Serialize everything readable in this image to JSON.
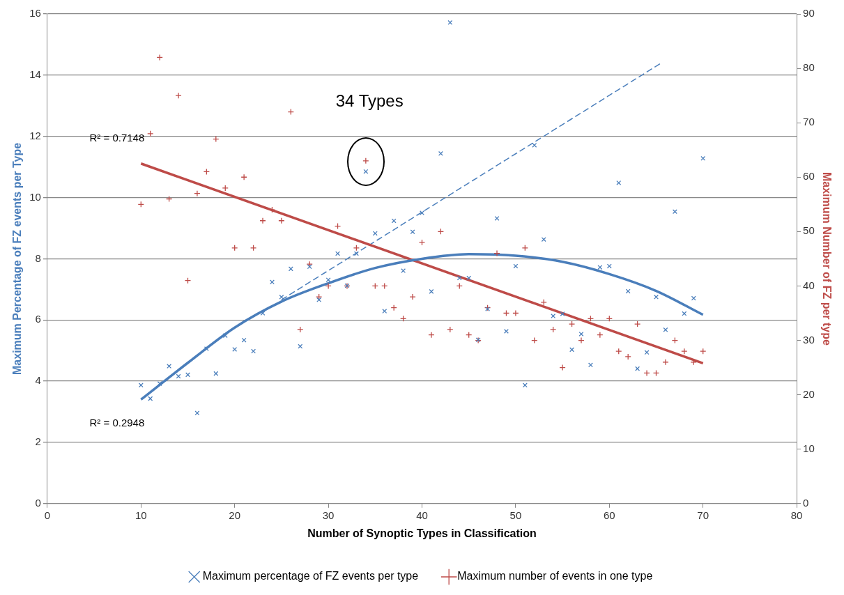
{
  "chart_data": {
    "type": "scatter",
    "xlabel": "Number of Synoptic Types in Classification",
    "ylabel": "Maximum Percentage of FZ events per Type",
    "y2label": "Maximum Number of FZ per type",
    "xlim": [
      0,
      80
    ],
    "xticks": [
      0,
      10,
      20,
      30,
      40,
      50,
      60,
      70,
      80
    ],
    "ylim": [
      0,
      16
    ],
    "yticks": [
      0,
      2,
      4,
      6,
      8,
      10,
      12,
      14,
      16
    ],
    "y2lim": [
      0,
      90
    ],
    "y2ticks": [
      0,
      10,
      20,
      30,
      40,
      50,
      60,
      70,
      80,
      90
    ],
    "grid": "y",
    "legend": "bottom",
    "x": [
      10,
      11,
      12,
      13,
      14,
      15,
      16,
      17,
      18,
      19,
      20,
      21,
      22,
      23,
      24,
      25,
      26,
      27,
      28,
      29,
      30,
      31,
      32,
      33,
      34,
      35,
      36,
      37,
      38,
      39,
      40,
      41,
      42,
      43,
      44,
      45,
      46,
      47,
      48,
      49,
      50,
      51,
      52,
      53,
      54,
      55,
      56,
      57,
      58,
      59,
      60,
      61,
      62,
      63,
      64,
      65,
      66,
      67,
      68,
      69,
      70
    ],
    "series": [
      {
        "name": "Maximum percentage of FZ events per type",
        "color": "#4a7ebb",
        "marker": "x",
        "values": [
          3.87,
          3.43,
          3.92,
          4.49,
          4.16,
          4.21,
          2.96,
          5.06,
          4.25,
          5.49,
          5.04,
          5.34,
          4.98,
          6.22,
          7.24,
          6.75,
          7.67,
          5.14,
          7.74,
          6.66,
          7.31,
          8.17,
          7.12,
          8.17,
          10.85,
          8.83,
          6.29,
          9.24,
          7.61,
          8.88,
          9.5,
          6.93,
          11.44,
          15.72,
          7.37,
          7.37,
          5.35,
          6.36,
          9.32,
          5.63,
          7.76,
          3.87,
          11.71,
          8.63,
          6.13,
          6.2,
          5.03,
          5.54,
          4.53,
          7.72,
          7.76,
          10.48,
          6.94,
          4.41,
          4.94,
          6.75,
          5.68,
          9.54,
          6.21,
          6.71,
          11.28
        ]
      },
      {
        "name": "Maximum number of events in one type",
        "color": "#be4b48",
        "marker": "cross",
        "axis": "y2",
        "values": [
          55,
          68,
          82,
          56,
          75,
          41,
          57,
          61,
          67,
          58,
          47,
          60,
          47,
          52,
          54,
          52,
          72,
          32,
          44,
          38,
          40,
          51,
          40,
          47,
          63,
          40,
          40,
          36,
          34,
          38,
          48,
          31,
          50,
          32,
          40,
          31,
          30,
          36,
          46,
          35,
          35,
          47,
          30,
          37,
          32,
          25,
          33,
          30,
          34,
          31,
          34,
          28,
          27,
          33,
          24,
          24,
          26,
          30,
          28,
          26,
          28
        ]
      },
      {
        "type": "line",
        "color": "#4a7ebb",
        "marker": "none",
        "line_style": "solid",
        "x": [
          10,
          15,
          20,
          25,
          30,
          35,
          40,
          45,
          50,
          55,
          60,
          65,
          70
        ],
        "values": [
          3.4,
          4.6,
          5.75,
          6.6,
          7.2,
          7.7,
          8.0,
          8.15,
          8.1,
          7.9,
          7.5,
          6.95,
          6.17
        ]
      },
      {
        "type": "line",
        "color": "#be4b48",
        "marker": "none",
        "line_style": "solid",
        "axis": "y2",
        "x": [
          10,
          70
        ],
        "values": [
          62.5,
          25.8
        ]
      },
      {
        "type": "line",
        "color": "#4a7ebb",
        "marker": "none",
        "line_style": "dashed",
        "x": [
          25,
          65.4
        ],
        "values": [
          6.66,
          14.37
        ]
      }
    ],
    "annotations": [
      "34 Types",
      "R² = 0.7148",
      "R² = 0.2948"
    ]
  }
}
